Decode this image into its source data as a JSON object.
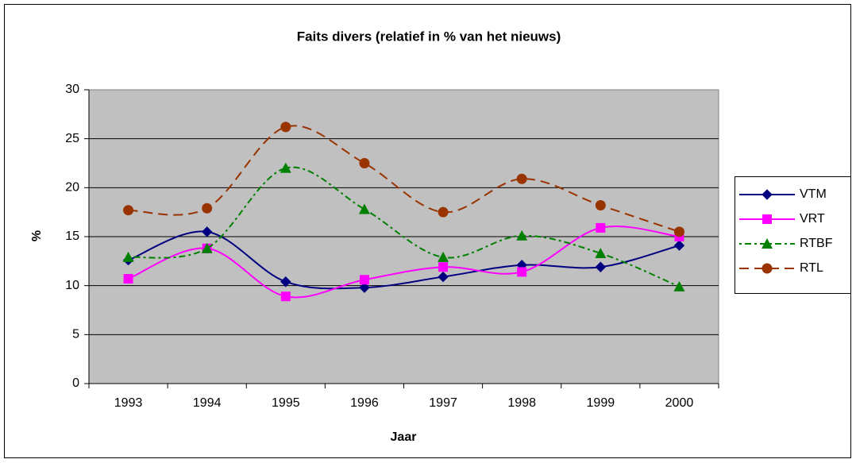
{
  "chart_data": {
    "type": "line",
    "title": "Faits divers (relatief in % van het nieuws)",
    "x_label": "Jaar",
    "y_label": "%",
    "categories": [
      "1993",
      "1994",
      "1995",
      "1996",
      "1997",
      "1998",
      "1999",
      "2000"
    ],
    "series": [
      {
        "name": "VTM",
        "color": "#000080",
        "marker": "diamond",
        "dash": "solid",
        "values": [
          12.6,
          15.5,
          10.4,
          9.8,
          10.9,
          12.1,
          11.9,
          14.1
        ]
      },
      {
        "name": "VRT",
        "color": "#ff00ff",
        "marker": "square",
        "dash": "solid",
        "values": [
          10.7,
          13.8,
          8.9,
          10.6,
          11.9,
          11.4,
          15.9,
          15.0
        ]
      },
      {
        "name": "RTBF",
        "color": "#008000",
        "marker": "triangle",
        "dash": "dotdash",
        "values": [
          12.9,
          13.8,
          22.0,
          17.8,
          12.9,
          15.1,
          13.3,
          9.9
        ]
      },
      {
        "name": "RTL",
        "color": "#993300",
        "marker": "circle",
        "dash": "dashed",
        "values": [
          17.7,
          17.9,
          26.2,
          22.5,
          17.5,
          20.9,
          18.2,
          15.5
        ]
      }
    ],
    "ylim": [
      0,
      30
    ],
    "yticks": [
      0,
      5,
      10,
      15,
      20,
      25,
      30
    ],
    "grid": true,
    "smooth": true,
    "legend": "right"
  }
}
